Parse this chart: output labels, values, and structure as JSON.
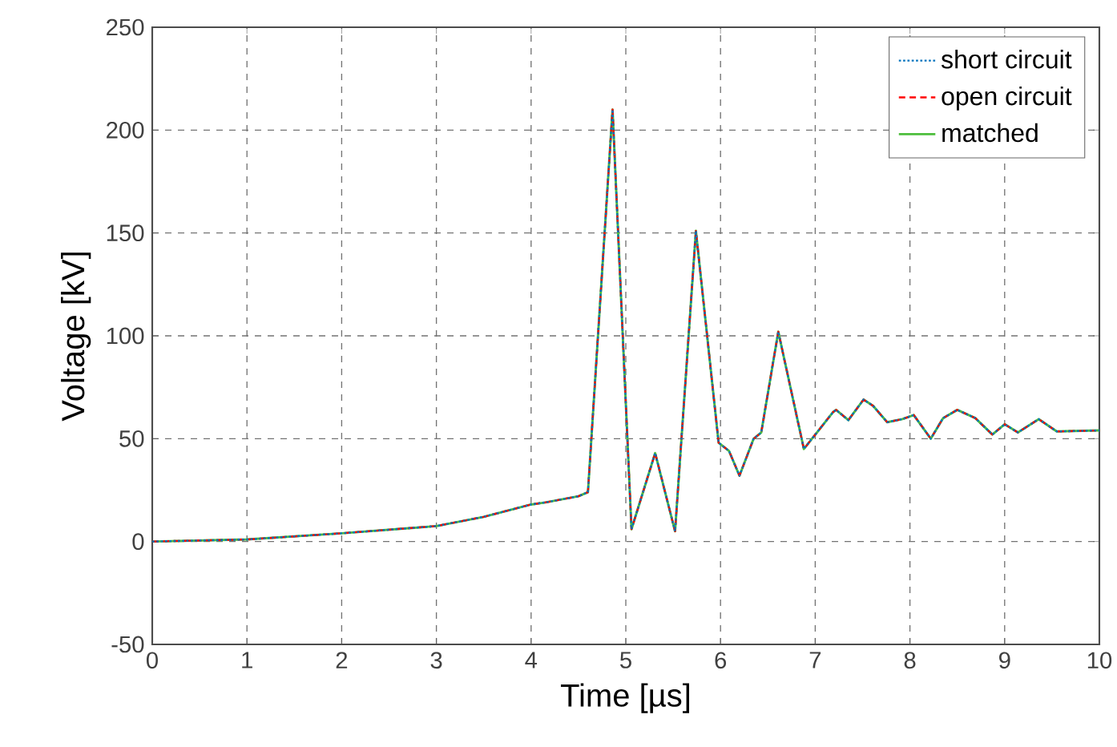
{
  "chart_data": {
    "type": "line",
    "xlabel": "Time [µs]",
    "ylabel": "Voltage [kV]",
    "x": [
      0,
      1,
      2,
      3,
      3.5,
      4,
      4.15,
      4.5,
      4.6,
      4.86,
      5.06,
      5.31,
      5.52,
      5.74,
      5.98,
      6.09,
      6.2,
      6.35,
      6.43,
      6.61,
      6.88,
      7.19,
      7.22,
      7.35,
      7.51,
      7.61,
      7.76,
      7.92,
      8.04,
      8.22,
      8.35,
      8.5,
      8.69,
      8.87,
      9.0,
      9.14,
      9.36,
      9.55,
      10
    ],
    "series": [
      {
        "name": "short circuit",
        "color": "#0072bd",
        "line_style": "dotted",
        "values": [
          0,
          1,
          4,
          7.5,
          12,
          18,
          19,
          22,
          24,
          210,
          6,
          43,
          5,
          151,
          48,
          44,
          32,
          50,
          53,
          102,
          45,
          63,
          64,
          59,
          69,
          66,
          58,
          59.5,
          61.5,
          50,
          60,
          64,
          60,
          52,
          57,
          53,
          59.5,
          53.5,
          54
        ]
      },
      {
        "name": "open circuit",
        "color": "#ff0000",
        "line_style": "dashed",
        "values": [
          0,
          1,
          4,
          7.5,
          12,
          18,
          19,
          22,
          24,
          210,
          6,
          43,
          5,
          151,
          48,
          44,
          32,
          50,
          53,
          102,
          45,
          63,
          64,
          59,
          69,
          66,
          58,
          59.5,
          61.5,
          50,
          60,
          64,
          60,
          52,
          57,
          53,
          59.5,
          53.5,
          54
        ]
      },
      {
        "name": "matched",
        "color": "#4dbe3c",
        "line_style": "solid",
        "values": [
          0,
          1,
          4,
          7.5,
          12,
          18,
          19,
          22,
          24,
          210,
          6,
          43,
          5,
          151,
          48,
          44,
          32,
          50,
          53,
          102,
          45,
          63,
          64,
          59,
          69,
          66,
          58,
          59.5,
          61.5,
          50,
          60,
          64,
          60,
          52,
          57,
          53,
          59.5,
          53.5,
          54
        ]
      }
    ],
    "xlim": [
      0,
      10
    ],
    "xticks": [
      0,
      1,
      2,
      3,
      4,
      5,
      6,
      7,
      8,
      9,
      10
    ],
    "ylim": [
      -50,
      250
    ],
    "yticks": [
      -50,
      0,
      50,
      100,
      150,
      200,
      250
    ],
    "grid": true,
    "legend": "top right",
    "marker": "none"
  }
}
